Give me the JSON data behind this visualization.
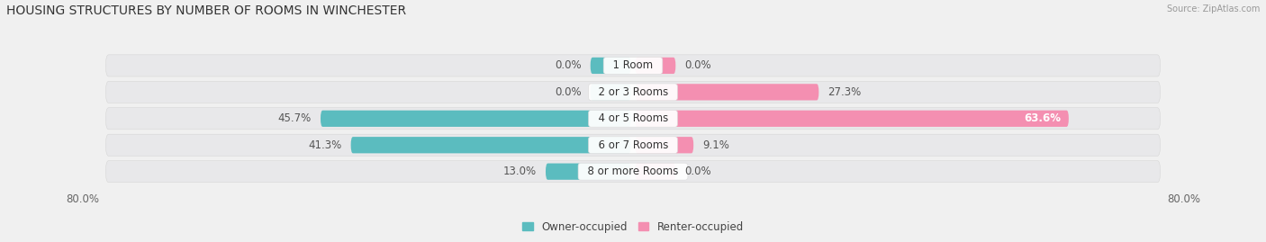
{
  "title": "HOUSING STRUCTURES BY NUMBER OF ROOMS IN WINCHESTER",
  "source": "Source: ZipAtlas.com",
  "categories": [
    "1 Room",
    "2 or 3 Rooms",
    "4 or 5 Rooms",
    "6 or 7 Rooms",
    "8 or more Rooms"
  ],
  "owner_values": [
    0.0,
    0.0,
    45.7,
    41.3,
    13.0
  ],
  "renter_values": [
    0.0,
    27.3,
    63.6,
    9.1,
    0.0
  ],
  "owner_color": "#5bbcbf",
  "renter_color": "#f48fb1",
  "bg_color": "#f0f0f0",
  "row_bg_color": "#e8e8ea",
  "axis_min": -80.0,
  "axis_max": 80.0,
  "bar_height": 0.62,
  "title_fontsize": 10,
  "label_fontsize": 8.5,
  "tick_fontsize": 8.5,
  "min_bar_width": 6.5
}
